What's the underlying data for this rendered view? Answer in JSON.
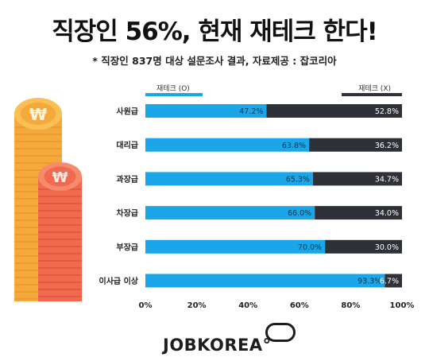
{
  "header": {
    "title": "직장인 56%, 현재 재테크 한다!",
    "subtitle": "* 직장인 837명 대상 설문조사 결과, 자료제공 : 잡코리아"
  },
  "logo": {
    "text": "JOBKOREA°"
  },
  "icons": {
    "coin_large": "won-coin-icon",
    "coin_small": "won-coin-icon",
    "coin_symbol": "₩"
  },
  "colors": {
    "yes": "#1aa6e8",
    "no": "#2e3238",
    "coin_orange": "#f6a93b",
    "coin_red": "#f1694f"
  },
  "chart_data": {
    "type": "bar",
    "orientation": "horizontal",
    "stacked": true,
    "categories": [
      "사원급",
      "대리급",
      "과장급",
      "차장급",
      "부장급",
      "이사급 이상"
    ],
    "series": [
      {
        "name": "재테크 (O)",
        "values": [
          47.2,
          63.8,
          65.3,
          66.0,
          70.0,
          93.3
        ]
      },
      {
        "name": "재테크 (X)",
        "values": [
          52.8,
          36.2,
          34.7,
          34.0,
          30.0,
          6.7
        ]
      }
    ],
    "data_labels": [
      [
        "47.2%",
        "63.8%",
        "65.3%",
        "66.0%",
        "70.0%",
        "93.3%"
      ],
      [
        "52.8%",
        "36.2%",
        "34.7%",
        "34.0%",
        "30.0%",
        "6.7%"
      ]
    ],
    "xlim": [
      0,
      100
    ],
    "xticks": [
      "0%",
      "20%",
      "40%",
      "60%",
      "80%",
      "100%"
    ],
    "legend_placement": "top",
    "grid": false
  }
}
